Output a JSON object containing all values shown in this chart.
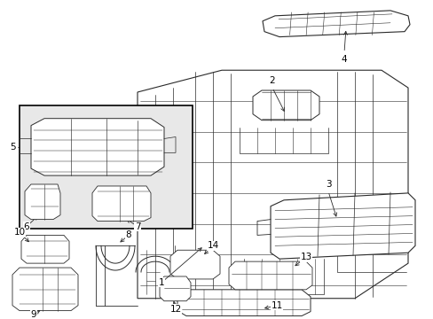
{
  "bg_color": "#ffffff",
  "line_color": "#2a2a2a",
  "label_color": "#000000",
  "fig_width": 4.89,
  "fig_height": 3.6,
  "dpi": 100,
  "box_face": "#e8e8e8",
  "box_edge": "#000000",
  "label_fontsize": 7.5
}
